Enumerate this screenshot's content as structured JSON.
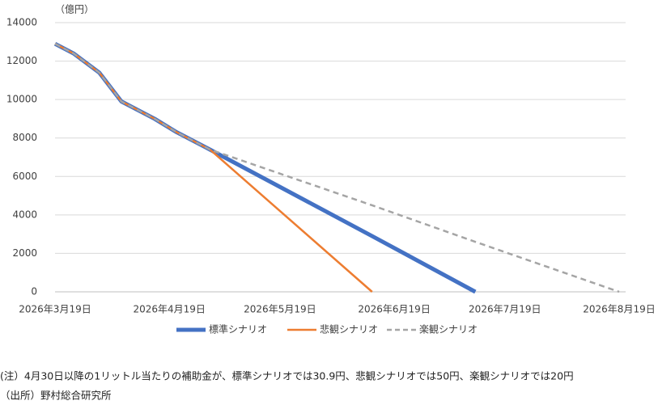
{
  "chart_data": {
    "type": "line",
    "ylabel": "（億円）",
    "x": [
      "2026-03-19",
      "2026-03-24",
      "2026-03-31",
      "2026-04-06",
      "2026-04-15",
      "2026-04-21",
      "2026-04-30",
      "2026-06-13",
      "2026-07-11",
      "2026-08-19"
    ],
    "series": [
      {
        "name": "標準シナリオ",
        "color": "#4472c4",
        "values": [
          12900,
          12400,
          11400,
          9900,
          9000,
          8300,
          7400,
          2900,
          0,
          null
        ]
      },
      {
        "name": "悲観シナリオ",
        "color": "#ed7d31",
        "values": [
          12900,
          12400,
          11400,
          9900,
          9000,
          8300,
          7400,
          0,
          null,
          null
        ]
      },
      {
        "name": "楽観シナリオ",
        "color": "#a5a5a5",
        "dashed": true,
        "values": [
          12900,
          12400,
          11400,
          9900,
          9000,
          8300,
          7400,
          4500,
          2600,
          0
        ]
      }
    ],
    "xlim": [
      "2026-03-19",
      "2026-08-19"
    ],
    "xticks": [
      {
        "value": "2026-03-19",
        "label": "2026年3月19日"
      },
      {
        "value": "2026-04-19",
        "label": "2026年4月19日"
      },
      {
        "value": "2026-05-19",
        "label": "2026年5月19日"
      },
      {
        "value": "2026-06-19",
        "label": "2026年6月19日"
      },
      {
        "value": "2026-07-19",
        "label": "2026年7月19日"
      },
      {
        "value": "2026-08-19",
        "label": "2026年8月19日"
      }
    ],
    "ylim": [
      0,
      14000
    ],
    "yticks": [
      0,
      2000,
      4000,
      6000,
      8000,
      10000,
      12000,
      14000
    ],
    "grid": true,
    "legend": "bottom"
  },
  "notes": [
    "(注）4月30日以降の1リットル当たりの補助金が、標準シナリオでは30.9円、悲観シナリオでは50円、楽観シナリオでは20円",
    "（出所）野村総合研究所"
  ]
}
